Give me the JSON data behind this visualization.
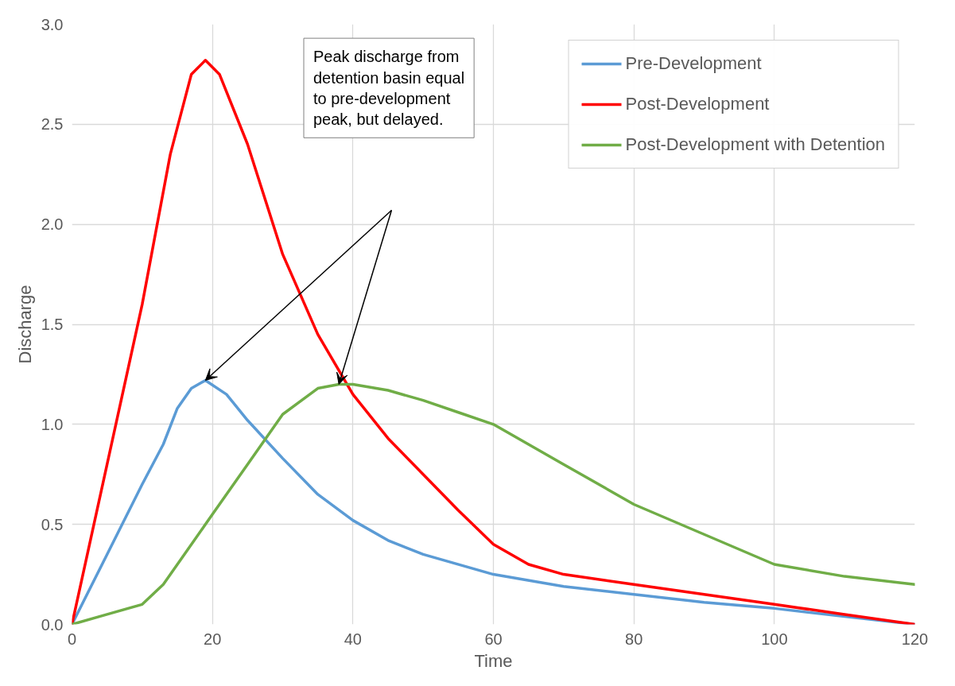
{
  "chart_data": {
    "type": "line",
    "xlabel": "Time",
    "ylabel": "Discharge",
    "xlim": [
      0,
      120
    ],
    "ylim": [
      0,
      3.0
    ],
    "xticks": [
      0,
      20,
      40,
      60,
      80,
      100,
      120
    ],
    "yticks": [
      {
        "value": 0,
        "label": "0.0"
      },
      {
        "value": 0.5,
        "label": "0.5"
      },
      {
        "value": 1,
        "label": "1.0"
      },
      {
        "value": 1.5,
        "label": "1.5"
      },
      {
        "value": 2,
        "label": "2.0"
      },
      {
        "value": 2.5,
        "label": "2.5"
      },
      {
        "value": 3,
        "label": "3.0"
      }
    ],
    "grid": true,
    "legend": "top right",
    "line_style": "solid",
    "marker": "none",
    "series": [
      {
        "name": "Pre-Development",
        "color": "#5b9bd5",
        "x": [
          0,
          5,
          10,
          13,
          15,
          17,
          19,
          22,
          25,
          30,
          35,
          40,
          45,
          50,
          60,
          70,
          80,
          90,
          100,
          110,
          120
        ],
        "values": [
          0,
          0.35,
          0.7,
          0.9,
          1.08,
          1.18,
          1.22,
          1.15,
          1.02,
          0.83,
          0.65,
          0.52,
          0.42,
          0.35,
          0.25,
          0.19,
          0.15,
          0.11,
          0.08,
          0.04,
          0
        ]
      },
      {
        "name": "Post-Development",
        "color": "#ff0000",
        "x": [
          0,
          5,
          10,
          14,
          17,
          19,
          21,
          25,
          30,
          35,
          40,
          45,
          50,
          55,
          60,
          65,
          70,
          80,
          90,
          100,
          110,
          120
        ],
        "values": [
          0,
          0.8,
          1.6,
          2.35,
          2.75,
          2.82,
          2.75,
          2.4,
          1.85,
          1.45,
          1.15,
          0.93,
          0.75,
          0.57,
          0.4,
          0.3,
          0.25,
          0.2,
          0.15,
          0.1,
          0.05,
          0
        ]
      },
      {
        "name": "Post-Development with Detention",
        "color": "#70ad47",
        "x": [
          0,
          5,
          10,
          13,
          16,
          20,
          25,
          30,
          35,
          38,
          40,
          45,
          50,
          55,
          60,
          65,
          70,
          80,
          90,
          100,
          110,
          120
        ],
        "values": [
          0,
          0.05,
          0.1,
          0.2,
          0.35,
          0.55,
          0.8,
          1.05,
          1.18,
          1.2,
          1.2,
          1.17,
          1.12,
          1.06,
          1.0,
          0.9,
          0.8,
          0.6,
          0.45,
          0.3,
          0.24,
          0.2
        ]
      }
    ],
    "annotations": [
      "Peak discharge from detention basin equal to pre-development peak, but delayed."
    ]
  }
}
